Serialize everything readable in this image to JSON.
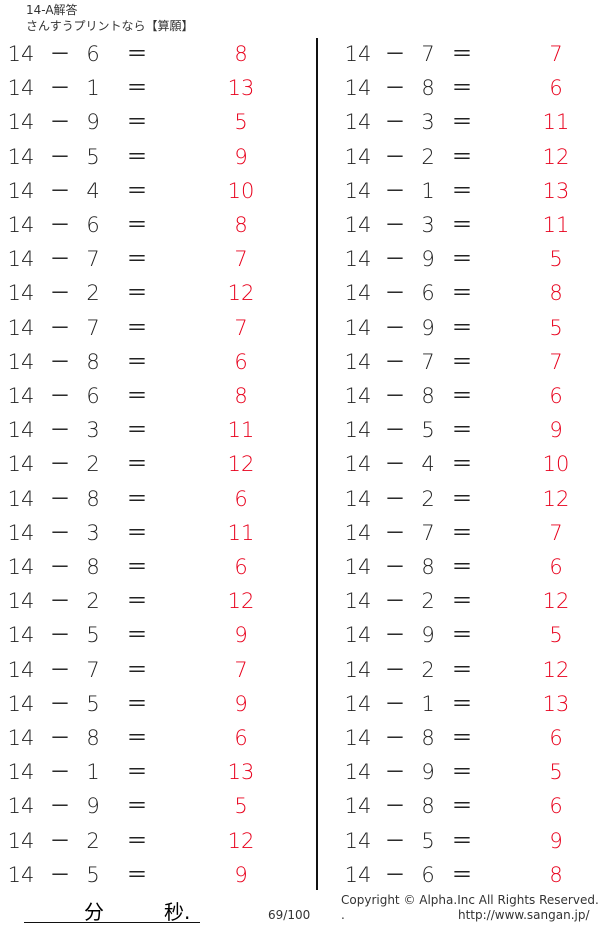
{
  "header": {
    "title": "14-A解答",
    "subtitle": "さんすうプリントなら【算願】"
  },
  "answer_color": "#e8001c",
  "left": [
    {
      "a": 14,
      "b": 6,
      "ans": 8
    },
    {
      "a": 14,
      "b": 1,
      "ans": 13
    },
    {
      "a": 14,
      "b": 9,
      "ans": 5
    },
    {
      "a": 14,
      "b": 5,
      "ans": 9
    },
    {
      "a": 14,
      "b": 4,
      "ans": 10
    },
    {
      "a": 14,
      "b": 6,
      "ans": 8
    },
    {
      "a": 14,
      "b": 7,
      "ans": 7
    },
    {
      "a": 14,
      "b": 2,
      "ans": 12
    },
    {
      "a": 14,
      "b": 7,
      "ans": 7
    },
    {
      "a": 14,
      "b": 8,
      "ans": 6
    },
    {
      "a": 14,
      "b": 6,
      "ans": 8
    },
    {
      "a": 14,
      "b": 3,
      "ans": 11
    },
    {
      "a": 14,
      "b": 2,
      "ans": 12
    },
    {
      "a": 14,
      "b": 8,
      "ans": 6
    },
    {
      "a": 14,
      "b": 3,
      "ans": 11
    },
    {
      "a": 14,
      "b": 8,
      "ans": 6
    },
    {
      "a": 14,
      "b": 2,
      "ans": 12
    },
    {
      "a": 14,
      "b": 5,
      "ans": 9
    },
    {
      "a": 14,
      "b": 7,
      "ans": 7
    },
    {
      "a": 14,
      "b": 5,
      "ans": 9
    },
    {
      "a": 14,
      "b": 8,
      "ans": 6
    },
    {
      "a": 14,
      "b": 1,
      "ans": 13
    },
    {
      "a": 14,
      "b": 9,
      "ans": 5
    },
    {
      "a": 14,
      "b": 2,
      "ans": 12
    },
    {
      "a": 14,
      "b": 5,
      "ans": 9
    }
  ],
  "right": [
    {
      "a": 14,
      "b": 7,
      "ans": 7
    },
    {
      "a": 14,
      "b": 8,
      "ans": 6
    },
    {
      "a": 14,
      "b": 3,
      "ans": 11
    },
    {
      "a": 14,
      "b": 2,
      "ans": 12
    },
    {
      "a": 14,
      "b": 1,
      "ans": 13
    },
    {
      "a": 14,
      "b": 3,
      "ans": 11
    },
    {
      "a": 14,
      "b": 9,
      "ans": 5
    },
    {
      "a": 14,
      "b": 6,
      "ans": 8
    },
    {
      "a": 14,
      "b": 9,
      "ans": 5
    },
    {
      "a": 14,
      "b": 7,
      "ans": 7
    },
    {
      "a": 14,
      "b": 8,
      "ans": 6
    },
    {
      "a": 14,
      "b": 5,
      "ans": 9
    },
    {
      "a": 14,
      "b": 4,
      "ans": 10
    },
    {
      "a": 14,
      "b": 2,
      "ans": 12
    },
    {
      "a": 14,
      "b": 7,
      "ans": 7
    },
    {
      "a": 14,
      "b": 8,
      "ans": 6
    },
    {
      "a": 14,
      "b": 2,
      "ans": 12
    },
    {
      "a": 14,
      "b": 9,
      "ans": 5
    },
    {
      "a": 14,
      "b": 2,
      "ans": 12
    },
    {
      "a": 14,
      "b": 1,
      "ans": 13
    },
    {
      "a": 14,
      "b": 8,
      "ans": 6
    },
    {
      "a": 14,
      "b": 9,
      "ans": 5
    },
    {
      "a": 14,
      "b": 8,
      "ans": 6
    },
    {
      "a": 14,
      "b": 5,
      "ans": 9
    },
    {
      "a": 14,
      "b": 6,
      "ans": 8
    }
  ],
  "symbols": {
    "minus": "－",
    "equals": "＝"
  },
  "footer": {
    "minutes": "分",
    "seconds": "秒.",
    "page": "69/100",
    "copyright": "Copyright ©  Alpha.Inc All Rights Reserved.",
    "dot": ".",
    "url": "http://www.sangan.jp/"
  }
}
